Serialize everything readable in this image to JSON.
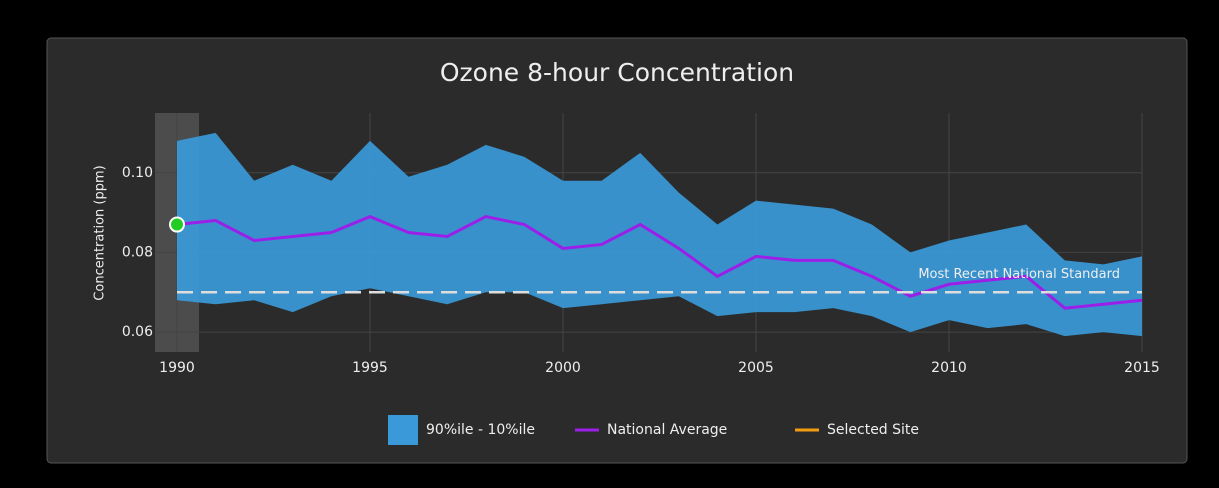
{
  "chart_data": {
    "type": "range-line",
    "title": "Ozone 8-hour Concentration",
    "y_label": "Concentration (ppm)",
    "x": [
      1990,
      1991,
      1992,
      1993,
      1994,
      1995,
      1996,
      1997,
      1998,
      1999,
      2000,
      2001,
      2002,
      2003,
      2004,
      2005,
      2006,
      2007,
      2008,
      2009,
      2010,
      2011,
      2012,
      2013,
      2014,
      2015
    ],
    "xlim": [
      1990,
      2015
    ],
    "xticks": [
      1990,
      1995,
      2000,
      2005,
      2010,
      2015
    ],
    "ylim": [
      0.055,
      0.115
    ],
    "yticks": [
      0.06,
      0.08,
      {
        "value": 0.1,
        "label": "0.10"
      }
    ],
    "grid": true,
    "series": [
      {
        "name": "90%ile - 10%ile",
        "color": "#3a9ad9",
        "upper": [
          0.108,
          0.11,
          0.098,
          0.102,
          0.098,
          0.108,
          0.099,
          0.102,
          0.107,
          0.104,
          0.098,
          0.098,
          0.105,
          0.095,
          0.087,
          0.093,
          0.092,
          0.091,
          0.087,
          0.08,
          0.083,
          0.085,
          0.087,
          0.078,
          0.077,
          0.079
        ],
        "lower": [
          0.068,
          0.067,
          0.068,
          0.065,
          0.069,
          0.071,
          0.069,
          0.067,
          0.07,
          0.07,
          0.066,
          0.067,
          0.068,
          0.069,
          0.064,
          0.065,
          0.065,
          0.066,
          0.064,
          0.06,
          0.063,
          0.061,
          0.062,
          0.059,
          0.06,
          0.059
        ]
      },
      {
        "name": "National Average",
        "color": "#9b1fe8",
        "values": [
          0.087,
          0.088,
          0.083,
          0.084,
          0.085,
          0.089,
          0.085,
          0.084,
          0.089,
          0.087,
          0.081,
          0.082,
          0.087,
          0.081,
          0.074,
          0.079,
          0.078,
          0.078,
          0.074,
          0.069,
          0.072,
          0.073,
          0.074,
          0.066,
          0.067,
          0.068
        ]
      },
      {
        "name": "Selected Site",
        "color": "#f39c12",
        "values": [
          null,
          null,
          null,
          null,
          null,
          null,
          null,
          null,
          null,
          null,
          null,
          null,
          null,
          null,
          null,
          null,
          null,
          null,
          null,
          null,
          null,
          null,
          null,
          null,
          null,
          null
        ]
      }
    ],
    "reference_line": {
      "value": 0.07,
      "label": "Most Recent National Standard"
    }
  }
}
